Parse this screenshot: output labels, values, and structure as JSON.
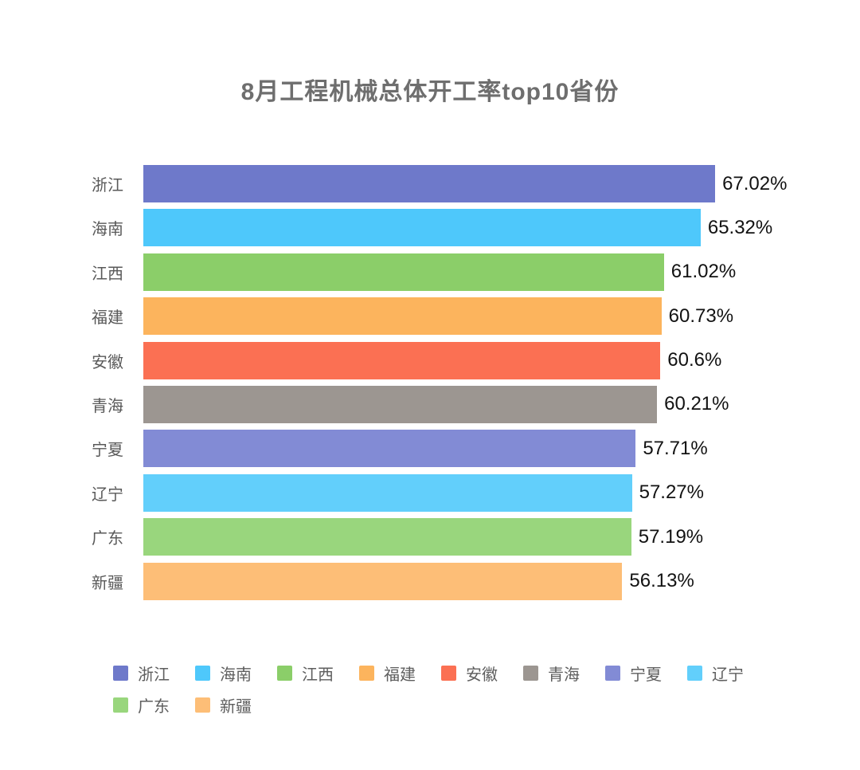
{
  "chart_data": {
    "type": "bar",
    "orientation": "horizontal",
    "title": "8月工程机械总体开工率top10省份",
    "categories": [
      "浙江",
      "海南",
      "江西",
      "福建",
      "安徽",
      "青海",
      "宁夏",
      "辽宁",
      "广东",
      "新疆"
    ],
    "values": [
      67.02,
      65.32,
      61.02,
      60.73,
      60.6,
      60.21,
      57.71,
      57.27,
      57.19,
      56.13
    ],
    "value_labels": [
      "67.02%",
      "65.32%",
      "61.02%",
      "60.73%",
      "60.6%",
      "60.21%",
      "57.71%",
      "57.27%",
      "57.19%",
      "56.13%"
    ],
    "bar_colors": [
      "#6E79CA",
      "#4EC8FB",
      "#8BCE69",
      "#FCB45D",
      "#FB7053",
      "#9C9691",
      "#828BD5",
      "#62CFFB",
      "#99D67D",
      "#FDBE77"
    ],
    "legend_entries": [
      "浙江",
      "海南",
      "江西",
      "福建",
      "安徽",
      "青海",
      "宁夏",
      "辽宁",
      "广东",
      "新疆"
    ],
    "legend_position": "bottom",
    "xlim": [
      0,
      70
    ],
    "grid": false,
    "axes_visible": false,
    "background_color": "#ffffff",
    "title_color": "#6e6e6e",
    "category_label_color": "#595959",
    "value_label_color": "#121212",
    "legend_text_color": "#5e5e5e"
  }
}
